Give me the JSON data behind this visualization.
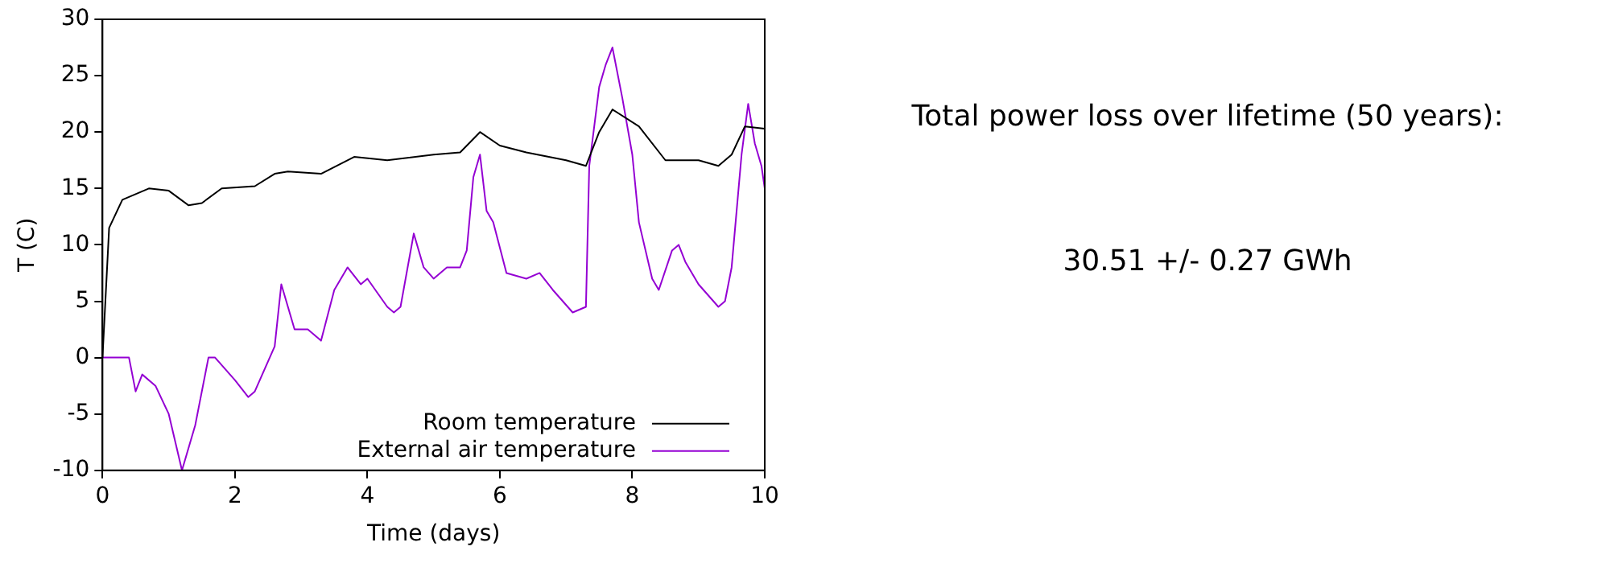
{
  "chart_data": {
    "type": "line",
    "xlabel": "Time (days)",
    "ylabel": "T (C)",
    "xlim": [
      0,
      10
    ],
    "xticks": [
      0,
      2,
      4,
      6,
      8,
      10
    ],
    "ylim": [
      -10,
      30
    ],
    "yticks": [
      -10,
      -5,
      0,
      5,
      10,
      15,
      20,
      25,
      30
    ],
    "grid": false,
    "legend": "bottom right",
    "marker": "none",
    "line_style": "solid",
    "annotations": [
      "Total power loss over lifetime (50 years):",
      "30.51 +/- 0.27 GWh"
    ],
    "series": [
      {
        "name": "Room temperature",
        "color": "#000000",
        "x": [
          0,
          0.1,
          0.3,
          0.7,
          1.0,
          1.3,
          1.5,
          1.8,
          2.3,
          2.6,
          2.8,
          3.3,
          3.8,
          4.3,
          5.0,
          5.4,
          5.7,
          6.0,
          6.4,
          7.0,
          7.3,
          7.5,
          7.7,
          8.1,
          8.5,
          9.0,
          9.3,
          9.5,
          9.7,
          10
        ],
        "values": [
          0,
          11.5,
          14,
          15,
          14.8,
          13.5,
          13.7,
          15,
          15.2,
          16.3,
          16.5,
          16.3,
          17.8,
          17.5,
          18,
          18.2,
          20,
          18.8,
          18.2,
          17.5,
          17,
          20,
          22,
          20.5,
          17.5,
          17.5,
          17,
          18,
          20.5,
          20.3
        ]
      },
      {
        "name": "External air temperature",
        "color": "#9400d3",
        "x": [
          0,
          0.4,
          0.5,
          0.6,
          0.8,
          1.0,
          1.2,
          1.4,
          1.6,
          1.7,
          2.0,
          2.2,
          2.3,
          2.6,
          2.7,
          2.9,
          3.1,
          3.3,
          3.5,
          3.7,
          3.9,
          4.0,
          4.3,
          4.4,
          4.5,
          4.7,
          4.85,
          5.0,
          5.2,
          5.4,
          5.5,
          5.6,
          5.7,
          5.8,
          5.9,
          6.1,
          6.4,
          6.6,
          6.8,
          7.1,
          7.3,
          7.35,
          7.5,
          7.6,
          7.7,
          7.85,
          8.0,
          8.1,
          8.3,
          8.4,
          8.6,
          8.7,
          8.8,
          9.0,
          9.3,
          9.4,
          9.5,
          9.65,
          9.75,
          9.85,
          9.95,
          10
        ],
        "values": [
          0,
          0,
          -3,
          -1.5,
          -2.5,
          -5,
          -10,
          -6,
          0,
          0,
          -2,
          -3.5,
          -3,
          1,
          6.5,
          2.5,
          2.5,
          1.5,
          6,
          8,
          6.5,
          7,
          4.5,
          4,
          4.5,
          11,
          8,
          7,
          8,
          8,
          9.5,
          16,
          18,
          13,
          12,
          7.5,
          7,
          7.5,
          6,
          4,
          4.5,
          17,
          24,
          26,
          27.5,
          23,
          18,
          12,
          7,
          6,
          9.5,
          10,
          8.5,
          6.5,
          4.5,
          5,
          8,
          18,
          22.5,
          19,
          17,
          15
        ]
      }
    ]
  }
}
